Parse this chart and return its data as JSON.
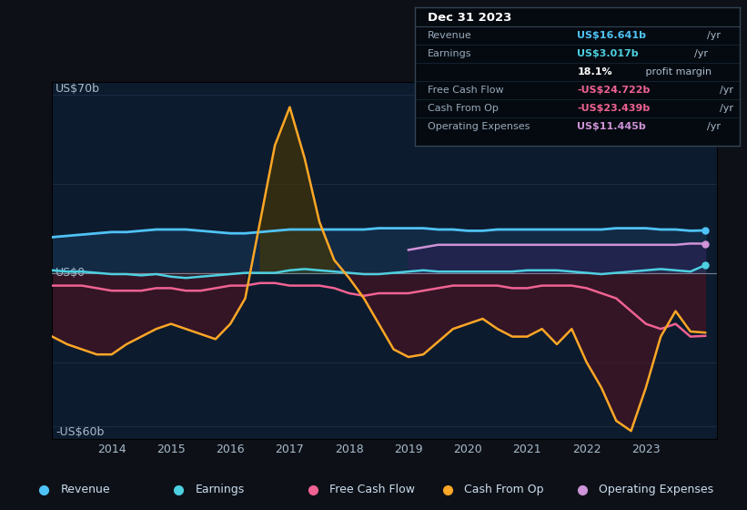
{
  "background_color": "#0d1117",
  "plot_bg_color": "#0d1b2e",
  "grid_color": "#2a3a5a",
  "y_label_top": "US$70b",
  "y_label_zero": "US$0",
  "y_label_bottom": "-US$60b",
  "ylim": [
    -65,
    75
  ],
  "xlim": [
    2013.0,
    2024.2
  ],
  "x_ticks": [
    2014,
    2015,
    2016,
    2017,
    2018,
    2019,
    2020,
    2021,
    2022,
    2023
  ],
  "colors": {
    "revenue": "#4fc3f7",
    "earnings": "#4dd0e1",
    "free_cash_flow": "#f06292",
    "cash_from_op": "#ffa726",
    "op_expenses": "#ce93d8"
  },
  "fill_colors": {
    "revenue": "#1a3a5c",
    "earnings": "#1a4a4a",
    "free_cash_flow": "#4a1020",
    "cash_from_op_pos": "#4a3800",
    "cash_from_op_neg": "#5a1020",
    "op_expenses": "#3d1a5c"
  },
  "years": [
    2013.0,
    2013.25,
    2013.5,
    2013.75,
    2014.0,
    2014.25,
    2014.5,
    2014.75,
    2015.0,
    2015.25,
    2015.5,
    2015.75,
    2016.0,
    2016.25,
    2016.5,
    2016.75,
    2017.0,
    2017.25,
    2017.5,
    2017.75,
    2018.0,
    2018.25,
    2018.5,
    2018.75,
    2019.0,
    2019.25,
    2019.5,
    2019.75,
    2020.0,
    2020.25,
    2020.5,
    2020.75,
    2021.0,
    2021.25,
    2021.5,
    2021.75,
    2022.0,
    2022.25,
    2022.5,
    2022.75,
    2023.0,
    2023.25,
    2023.5,
    2023.75,
    2024.0
  ],
  "revenue": [
    14,
    14.5,
    15,
    15.5,
    16,
    16,
    16.5,
    17,
    17,
    17,
    16.5,
    16,
    15.5,
    15.5,
    16,
    16.5,
    17,
    17,
    17,
    17,
    17,
    17,
    17.5,
    17.5,
    17.5,
    17.5,
    17,
    17,
    16.5,
    16.5,
    17,
    17,
    17,
    17,
    17,
    17,
    17,
    17,
    17.5,
    17.5,
    17.5,
    17,
    17,
    16.5,
    16.641
  ],
  "earnings": [
    1,
    0.5,
    0.5,
    0,
    -0.5,
    -0.5,
    -1,
    -0.5,
    -1.5,
    -2,
    -1.5,
    -1,
    -0.5,
    0,
    0,
    0,
    1,
    1.5,
    1,
    0.5,
    0,
    -0.5,
    -0.5,
    0,
    0.5,
    1,
    0.5,
    0.5,
    0.5,
    0.5,
    0.5,
    0.5,
    1,
    1,
    1,
    0.5,
    0,
    -0.5,
    0,
    0.5,
    1,
    1.5,
    1,
    0.5,
    3.017
  ],
  "cash_from_op": [
    -25,
    -28,
    -30,
    -32,
    -32,
    -28,
    -25,
    -22,
    -20,
    -22,
    -24,
    -26,
    -20,
    -10,
    20,
    50,
    65,
    45,
    20,
    5,
    -2,
    -10,
    -20,
    -30,
    -33,
    -32,
    -27,
    -22,
    -20,
    -18,
    -22,
    -25,
    -25,
    -22,
    -28,
    -22,
    -35,
    -45,
    -58,
    -62,
    -45,
    -25,
    -15,
    -23,
    -23.439
  ],
  "free_cash_flow": [
    -5,
    -5,
    -5,
    -6,
    -7,
    -7,
    -7,
    -6,
    -6,
    -7,
    -7,
    -6,
    -5,
    -5,
    -4,
    -4,
    -5,
    -5,
    -5,
    -6,
    -8,
    -9,
    -8,
    -8,
    -8,
    -7,
    -6,
    -5,
    -5,
    -5,
    -5,
    -6,
    -6,
    -5,
    -5,
    -5,
    -6,
    -8,
    -10,
    -15,
    -20,
    -22,
    -20,
    -25,
    -24.722
  ],
  "op_expenses": [
    0,
    0,
    0,
    0,
    0,
    0,
    0,
    0,
    0,
    0,
    0,
    0,
    0,
    0,
    0,
    0,
    0,
    0,
    0,
    0,
    0,
    0,
    0,
    0,
    9,
    10,
    11,
    11,
    11,
    11,
    11,
    11,
    11,
    11,
    11,
    11,
    11,
    11,
    11,
    11,
    11,
    11,
    11,
    11.5,
    11.445
  ],
  "info_box": {
    "title": "Dec 31 2023",
    "rows": [
      {
        "label": "Revenue",
        "value": "US$16.641b",
        "unit": "/yr",
        "value_color": "#4fc3f7"
      },
      {
        "label": "Earnings",
        "value": "US$3.017b",
        "unit": "/yr",
        "value_color": "#4dd0e1"
      },
      {
        "label": "",
        "value": "18.1%",
        "unit": " profit margin",
        "value_color": "#ffffff"
      },
      {
        "label": "Free Cash Flow",
        "value": "-US$24.722b",
        "unit": "/yr",
        "value_color": "#f06292"
      },
      {
        "label": "Cash From Op",
        "value": "-US$23.439b",
        "unit": "/yr",
        "value_color": "#f06292"
      },
      {
        "label": "Operating Expenses",
        "value": "US$11.445b",
        "unit": "/yr",
        "value_color": "#ce93d8"
      }
    ]
  },
  "legend": [
    {
      "label": "Revenue",
      "color": "#4fc3f7"
    },
    {
      "label": "Earnings",
      "color": "#4dd0e1"
    },
    {
      "label": "Free Cash Flow",
      "color": "#f06292"
    },
    {
      "label": "Cash From Op",
      "color": "#ffa726"
    },
    {
      "label": "Operating Expenses",
      "color": "#ce93d8"
    }
  ]
}
